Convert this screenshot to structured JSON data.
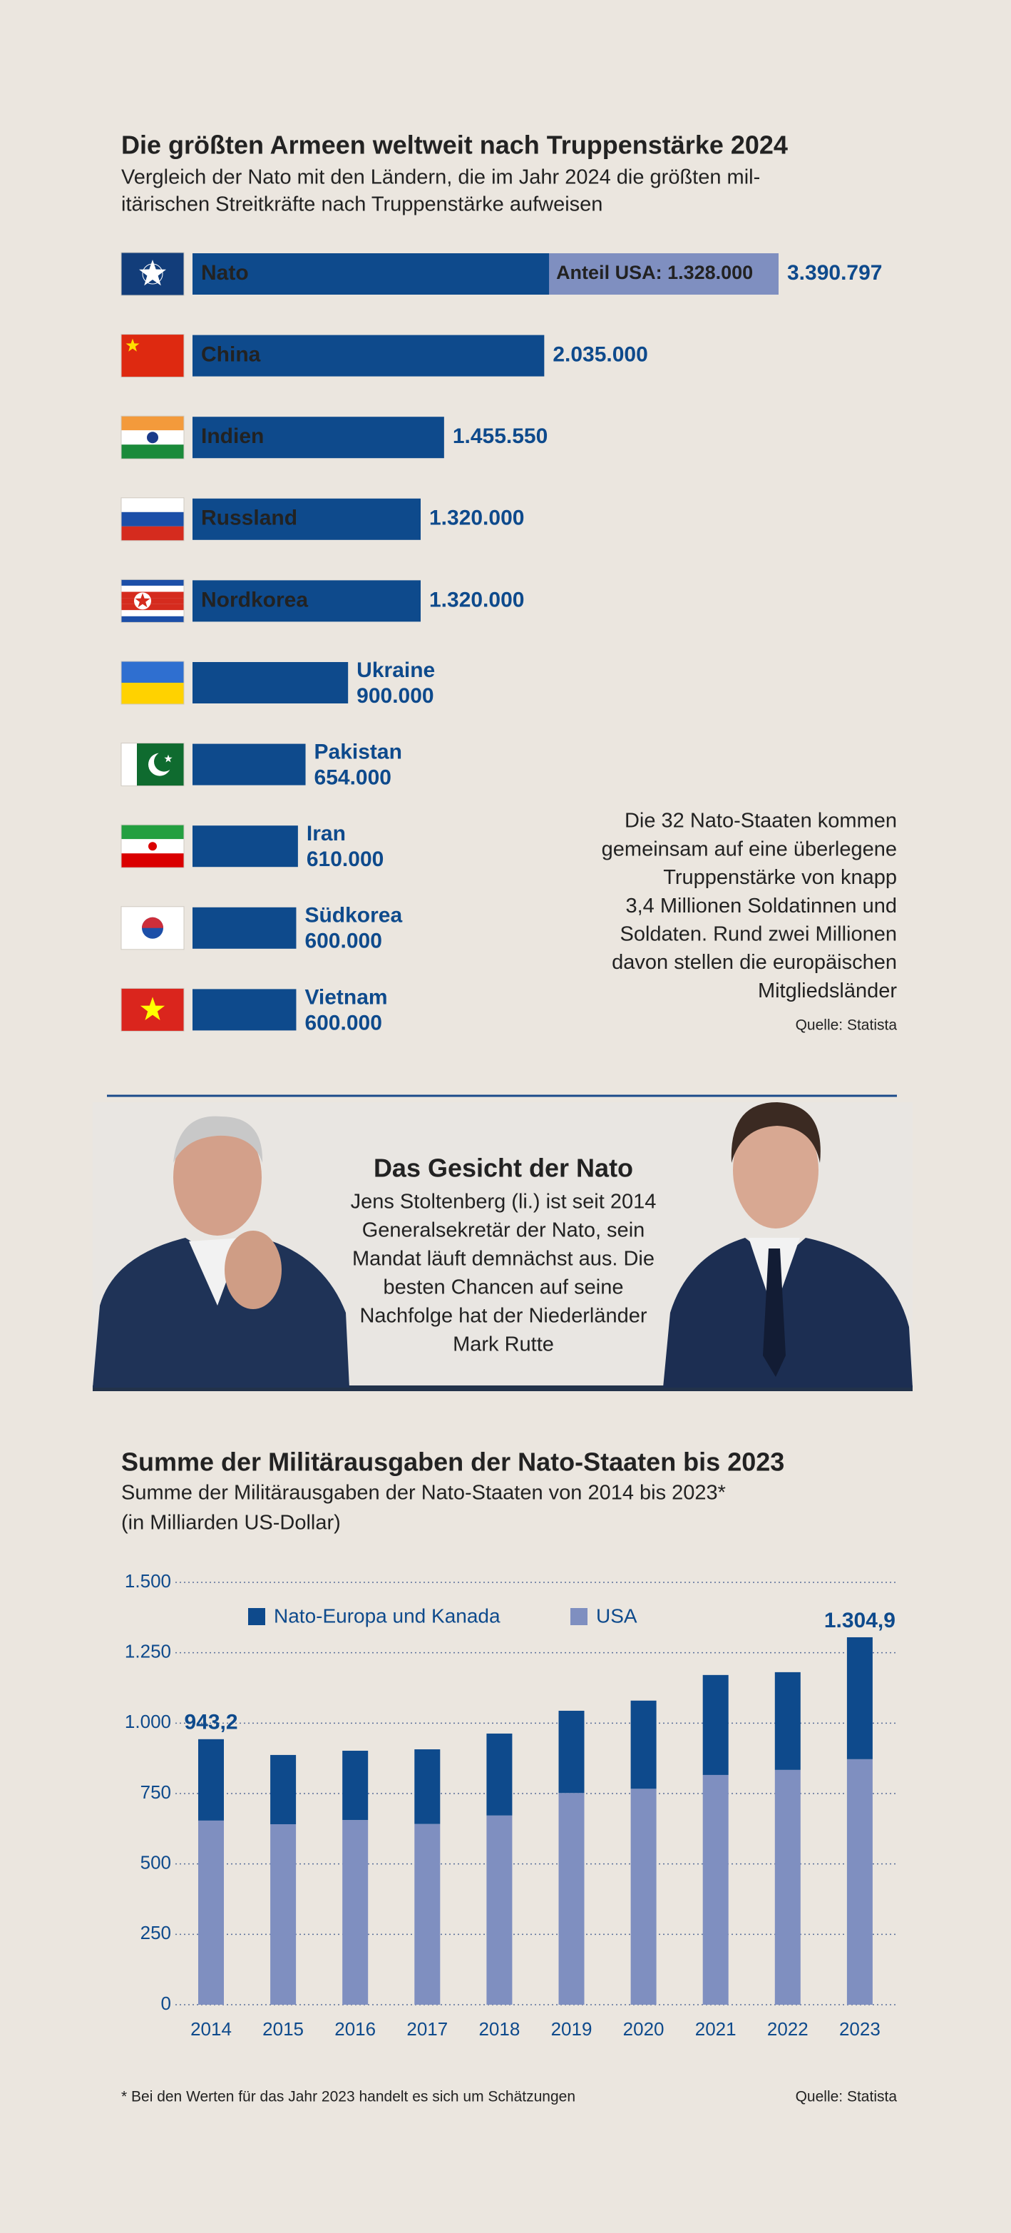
{
  "chart_data": [
    {
      "type": "hbar",
      "title": "Die größten Armeen weltweit nach Truppenstärke 2024",
      "subtitle": [
        "Vergleich der Nato mit den Ländern, die im Jahr 2024 die größten mil-",
        "itärischen Streitkräfte nach Truppenstärke aufweisen"
      ],
      "categories": [
        "Nato",
        "China",
        "Indien",
        "Russland",
        "Nordkorea",
        "Ukraine",
        "Pakistan",
        "Iran",
        "Südkorea",
        "Vietnam"
      ],
      "values": [
        3390797,
        2035000,
        1455550,
        1320000,
        1320000,
        900000,
        654000,
        610000,
        600000,
        600000
      ],
      "value_labels": [
        "3.390.797",
        "2.035.000",
        "1.455.550",
        "1.320.000",
        "1.320.000",
        "900.000",
        "654.000",
        "610.000",
        "600.000",
        "600.000"
      ],
      "color": "#0e4a8c",
      "segments": [
        {
          "category": "Nato",
          "label": "Anteil USA: 1.328.000",
          "value": 1328000,
          "color": "#7f8fc0"
        }
      ],
      "annotation": [
        "Die 32 Nato-Staaten kommen",
        "gemeinsam auf eine überlegene",
        "Truppenstärke von knapp",
        "3,4 Millionen Soldatinnen und",
        "Soldaten. Rund zwei Millionen",
        "davon stellen die europäischen",
        "Mitgliedsländer"
      ],
      "source": "Quelle: Statista"
    },
    {
      "type": "stacked_bar",
      "title": "Summe der Militärausgaben der Nato-Staaten bis 2023",
      "subtitle": [
        "Summe der Militärausgaben der Nato-Staaten von 2014 bis 2023*",
        "(in Milliarden US-Dollar)"
      ],
      "categories": [
        "2014",
        "2015",
        "2016",
        "2017",
        "2018",
        "2019",
        "2020",
        "2021",
        "2022",
        "2023"
      ],
      "series": [
        {
          "name": "Nato-Europa und Kanada",
          "color": "#0e4a8c",
          "values": [
            289,
            246,
            246,
            265,
            291,
            292,
            313,
            355,
            347,
            433
          ]
        },
        {
          "name": "USA",
          "color": "#7f8fc0",
          "values": [
            654,
            641,
            656,
            642,
            672,
            752,
            767,
            816,
            834,
            872
          ]
        }
      ],
      "annotations": [
        {
          "category": "2014",
          "value": 943.2,
          "label": "943,2"
        },
        {
          "category": "2023",
          "value": 1304.9,
          "label": "1.304,9"
        }
      ],
      "ylim": [
        0,
        1500
      ],
      "yticks": [
        {
          "value": 1500,
          "label": "1.500"
        },
        {
          "value": 1250,
          "label": "1.250"
        },
        {
          "value": 1000,
          "label": "1.000"
        },
        750,
        500,
        250,
        0
      ],
      "grid": true,
      "footnote": "* Bei den Werten für das Jahr 2023 handelt es sich um Schätzungen",
      "source": "Quelle: Statista"
    }
  ],
  "feature": {
    "title": "Das Gesicht der Nato",
    "text": [
      "Jens Stoltenberg (li.) ist seit 2014",
      "Generalsekretär der Nato, sein",
      "Mandat läuft demnächst aus. Die",
      "besten Chancen auf seine",
      "Nachfolge hat der Niederländer",
      "Mark Rutte"
    ]
  }
}
